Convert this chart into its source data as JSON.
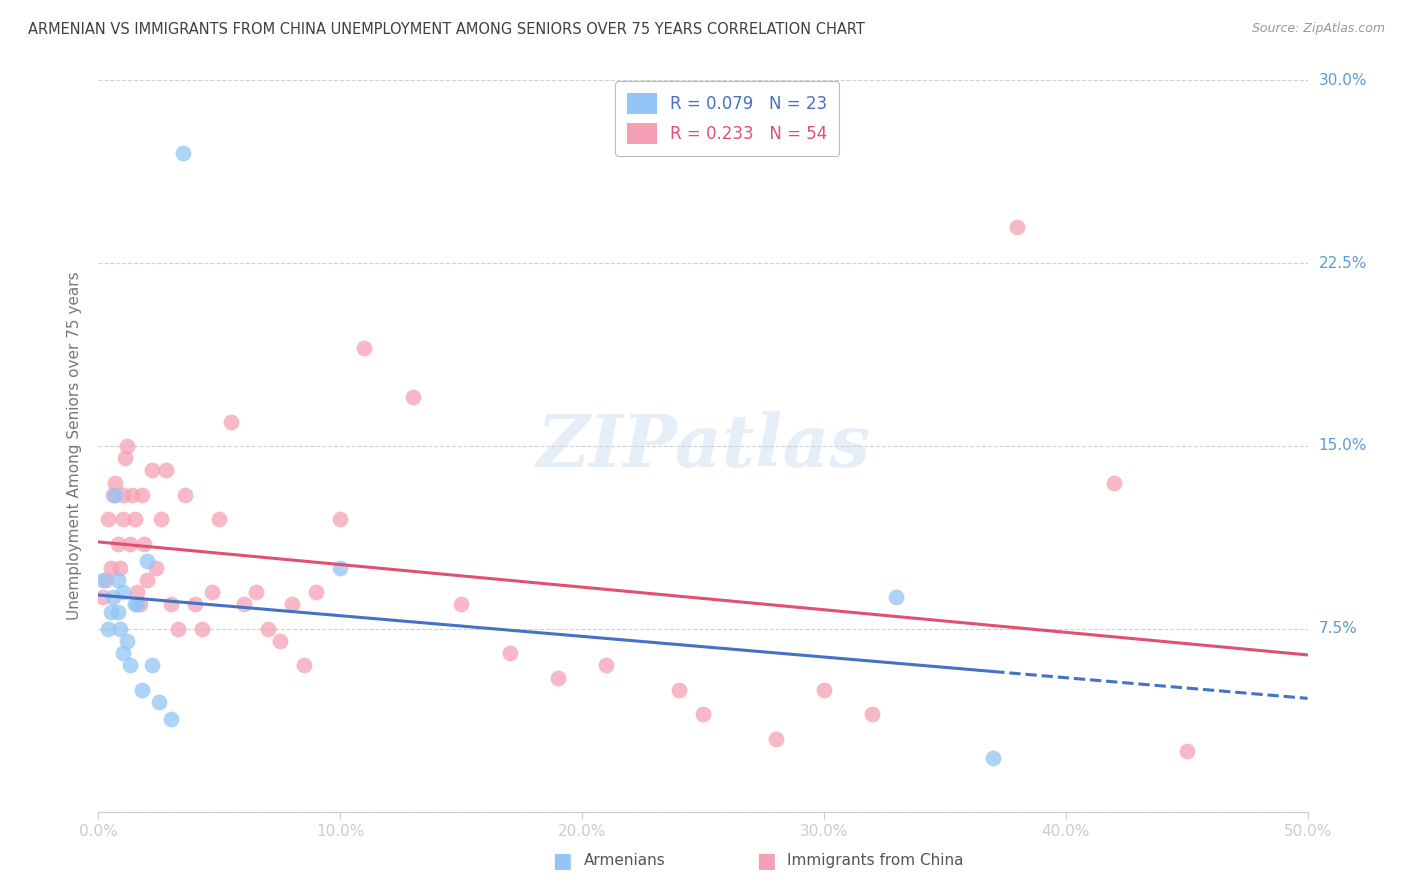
{
  "title": "ARMENIAN VS IMMIGRANTS FROM CHINA UNEMPLOYMENT AMONG SENIORS OVER 75 YEARS CORRELATION CHART",
  "source": "Source: ZipAtlas.com",
  "ylabel": "Unemployment Among Seniors over 75 years",
  "xlim": [
    0.0,
    0.5
  ],
  "ylim": [
    0.0,
    0.3
  ],
  "armenian_R": 0.079,
  "armenian_N": 23,
  "china_R": 0.233,
  "china_N": 54,
  "color_armenian": "#92C5F5",
  "color_china": "#F5A0B5",
  "color_armenian_line": "#4472C4",
  "color_china_line": "#E05070",
  "color_tick": "#5B9BD5",
  "color_ylabel": "#777777",
  "color_title": "#404040",
  "color_source": "#999999",
  "armenian_x": [
    0.002,
    0.004,
    0.005,
    0.006,
    0.007,
    0.008,
    0.008,
    0.009,
    0.01,
    0.01,
    0.012,
    0.013,
    0.015,
    0.016,
    0.018,
    0.02,
    0.022,
    0.025,
    0.03,
    0.035,
    0.1,
    0.33,
    0.37
  ],
  "armenian_y": [
    0.095,
    0.075,
    0.082,
    0.088,
    0.13,
    0.095,
    0.082,
    0.075,
    0.09,
    0.065,
    0.07,
    0.06,
    0.085,
    0.085,
    0.05,
    0.103,
    0.06,
    0.045,
    0.038,
    0.27,
    0.1,
    0.088,
    0.022
  ],
  "china_x": [
    0.002,
    0.003,
    0.004,
    0.005,
    0.006,
    0.007,
    0.008,
    0.009,
    0.01,
    0.01,
    0.011,
    0.012,
    0.013,
    0.014,
    0.015,
    0.016,
    0.017,
    0.018,
    0.019,
    0.02,
    0.022,
    0.024,
    0.026,
    0.028,
    0.03,
    0.033,
    0.036,
    0.04,
    0.043,
    0.047,
    0.05,
    0.055,
    0.06,
    0.065,
    0.07,
    0.075,
    0.08,
    0.085,
    0.09,
    0.1,
    0.11,
    0.13,
    0.15,
    0.17,
    0.19,
    0.21,
    0.24,
    0.25,
    0.28,
    0.3,
    0.32,
    0.38,
    0.42,
    0.45
  ],
  "china_y": [
    0.088,
    0.095,
    0.12,
    0.1,
    0.13,
    0.135,
    0.11,
    0.1,
    0.13,
    0.12,
    0.145,
    0.15,
    0.11,
    0.13,
    0.12,
    0.09,
    0.085,
    0.13,
    0.11,
    0.095,
    0.14,
    0.1,
    0.12,
    0.14,
    0.085,
    0.075,
    0.13,
    0.085,
    0.075,
    0.09,
    0.12,
    0.16,
    0.085,
    0.09,
    0.075,
    0.07,
    0.085,
    0.06,
    0.09,
    0.12,
    0.19,
    0.17,
    0.085,
    0.065,
    0.055,
    0.06,
    0.05,
    0.04,
    0.03,
    0.05,
    0.04,
    0.24,
    0.135,
    0.025
  ],
  "xticks": [
    0.0,
    0.1,
    0.2,
    0.3,
    0.4,
    0.5
  ],
  "yticks": [
    0.0,
    0.075,
    0.15,
    0.225,
    0.3
  ],
  "xtick_labels": [
    "0.0%",
    "10.0%",
    "20.0%",
    "30.0%",
    "40.0%",
    "50.0%"
  ],
  "ytick_labels": [
    "",
    "7.5%",
    "15.0%",
    "22.5%",
    "30.0%"
  ]
}
